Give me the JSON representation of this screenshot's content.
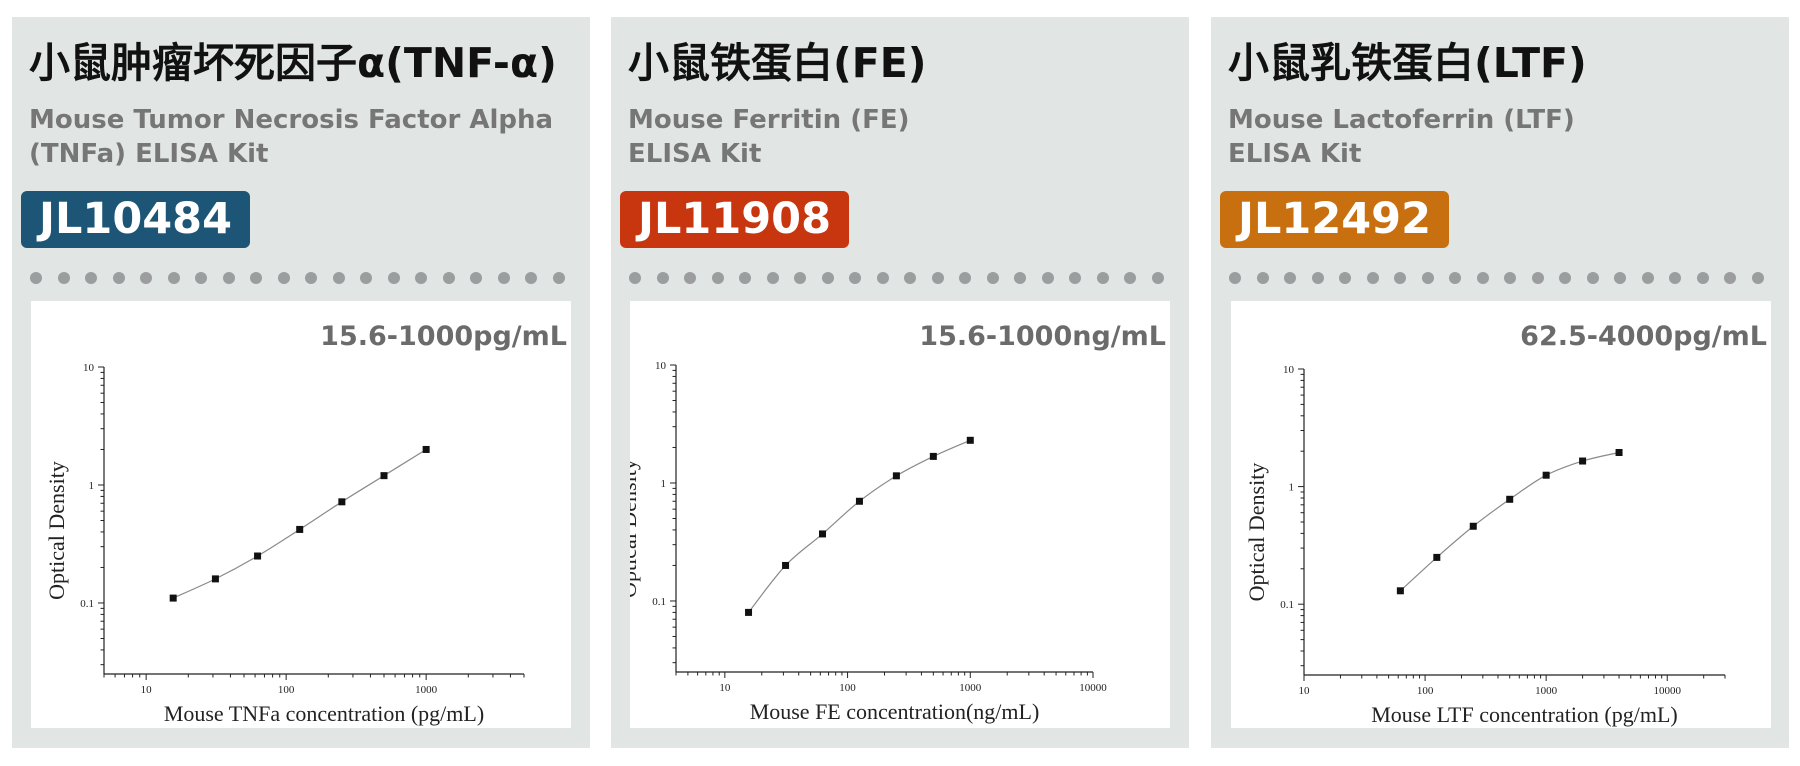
{
  "cards": [
    {
      "title": "小鼠肿瘤坏死因子α(TNF-α)",
      "subtitle_line1": "Mouse Tumor Necrosis Factor Alpha",
      "subtitle_line2": "(TNFa) ELISA Kit",
      "catalog": "JL10484",
      "badge_color": "#1c5576",
      "range": "15.6-1000pg/mL"
    },
    {
      "title": "小鼠铁蛋白(FE)",
      "subtitle_line1": "Mouse Ferritin (FE)",
      "subtitle_line2": "ELISA Kit",
      "catalog": "JL11908",
      "badge_color": "#c8360f",
      "range": "15.6-1000ng/mL"
    },
    {
      "title": "小鼠乳铁蛋白(LTF)",
      "subtitle_line1": "Mouse Lactoferrin (LTF)",
      "subtitle_line2": "ELISA Kit",
      "catalog": "JL12492",
      "badge_color": "#c8700f",
      "range": "62.5-4000pg/mL"
    }
  ],
  "chart_data": [
    {
      "type": "scatter",
      "xlabel": "Mouse TNFa concentration (pg/mL)",
      "ylabel": "Optical Density",
      "x_scale": "log",
      "y_scale": "log",
      "xlim": [
        5,
        5000
      ],
      "ylim": [
        0.025,
        10
      ],
      "x_ticks": [
        10,
        100,
        1000
      ],
      "y_ticks": [
        0.1,
        1,
        10
      ],
      "x": [
        15.6,
        31.25,
        62.5,
        125,
        250,
        500,
        1000
      ],
      "y": [
        0.11,
        0.16,
        0.25,
        0.42,
        0.72,
        1.2,
        2.0
      ],
      "fit_line": true
    },
    {
      "type": "scatter",
      "xlabel": "Mouse FE concentration(ng/mL)",
      "ylabel": "Optical Density",
      "x_scale": "log",
      "y_scale": "log",
      "xlim": [
        4,
        10000
      ],
      "ylim": [
        0.025,
        10
      ],
      "x_ticks": [
        10,
        100,
        1000,
        10000
      ],
      "y_ticks": [
        0.1,
        1,
        10
      ],
      "x": [
        15.6,
        31.25,
        62.5,
        125,
        250,
        500,
        1000
      ],
      "y": [
        0.08,
        0.2,
        0.37,
        0.7,
        1.15,
        1.68,
        2.3
      ],
      "fit_line": true
    },
    {
      "type": "scatter",
      "xlabel": "Mouse LTF concentration (pg/mL)",
      "ylabel": "Optical Density",
      "x_scale": "log",
      "y_scale": "log",
      "xlim": [
        10,
        30000
      ],
      "ylim": [
        0.025,
        10
      ],
      "x_ticks": [
        10,
        100,
        1000,
        10000
      ],
      "y_ticks": [
        0.1,
        1,
        10
      ],
      "x": [
        62.5,
        125,
        250,
        500,
        1000,
        2000,
        4000
      ],
      "y": [
        0.13,
        0.25,
        0.46,
        0.78,
        1.25,
        1.65,
        1.95
      ],
      "fit_line": true
    }
  ]
}
